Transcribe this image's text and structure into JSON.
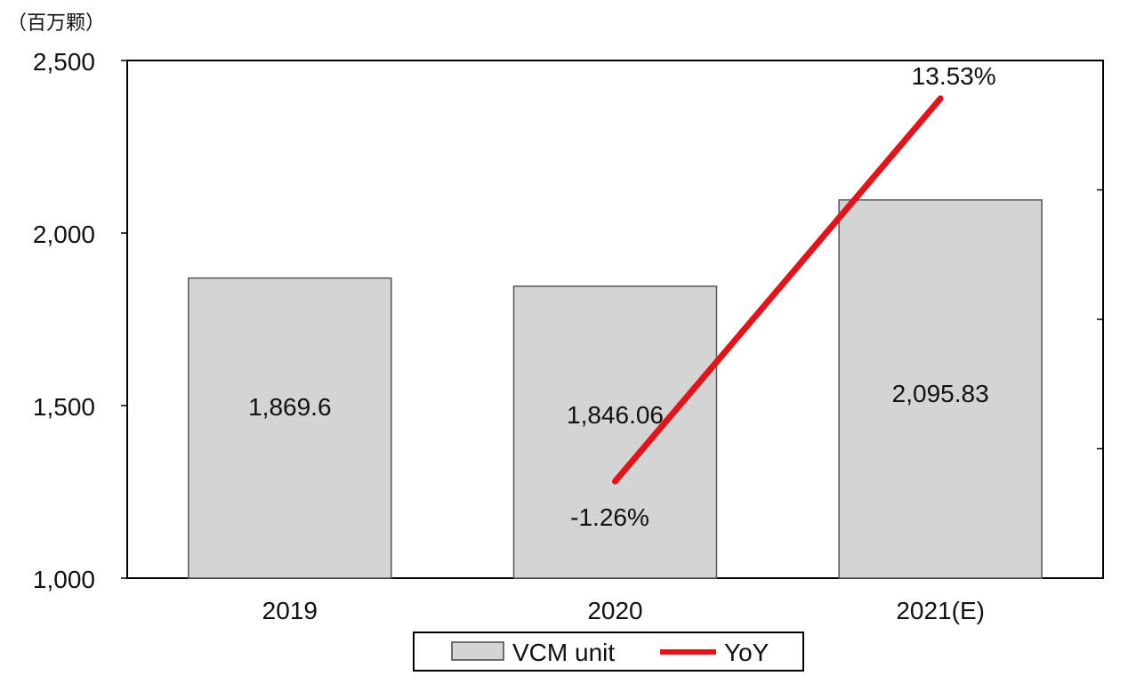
{
  "chart_data": {
    "type": "bar",
    "unit_label": "（百万颗）",
    "categories": [
      "2019",
      "2020",
      "2021(E)"
    ],
    "series": [
      {
        "name": "VCM unit",
        "kind": "bar",
        "values": [
          1869.6,
          1846.06,
          2095.83
        ],
        "value_labels": [
          "1,869.6",
          "1,846.06",
          "2,095.83"
        ],
        "color": "#d4d4d4"
      },
      {
        "name": "YoY",
        "kind": "line",
        "axis": "secondary",
        "values": [
          null,
          -1.26,
          13.53
        ],
        "value_labels": [
          "",
          "-1.26%",
          "13.53%"
        ],
        "color": "#e0141b"
      }
    ],
    "ylim": [
      1000,
      2500
    ],
    "yticks": [
      1000,
      1500,
      2000,
      2500
    ],
    "ytick_labels": [
      "1,000",
      "1,500",
      "2,000",
      "2,500"
    ],
    "y2lim": [
      -5,
      15
    ],
    "legend": {
      "position": "bottom",
      "items": [
        "VCM unit",
        "YoY"
      ]
    }
  }
}
